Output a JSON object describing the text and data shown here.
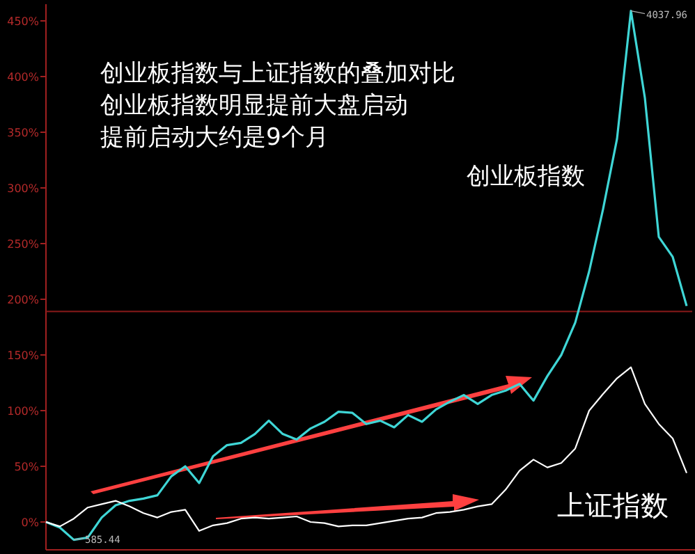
{
  "chart_data": {
    "type": "line",
    "categories": [
      null,
      null,
      null,
      null,
      null,
      null,
      null,
      null,
      null,
      null,
      null,
      null,
      null,
      null,
      null,
      null,
      null,
      null,
      null,
      null,
      null,
      null,
      null,
      null,
      null,
      null,
      null,
      null,
      null,
      null,
      null,
      null,
      null,
      null,
      null,
      null,
      null,
      null,
      null,
      null,
      null,
      null,
      null,
      null,
      null,
      null,
      null
    ],
    "series": [
      {
        "name": "创业板指数",
        "color": "#3fd6d6",
        "values": [
          0,
          -5,
          -16,
          -14,
          4,
          15,
          19,
          21,
          24,
          41,
          50,
          35,
          59,
          69,
          71,
          79,
          91,
          79,
          74,
          84,
          90,
          99,
          98,
          88,
          91,
          85,
          96,
          90,
          101,
          108,
          114,
          106,
          114,
          118,
          124,
          109,
          131,
          150,
          179,
          225,
          281,
          344,
          459,
          381,
          256,
          238,
          194
        ]
      },
      {
        "name": "上证指数",
        "color": "#ffffff",
        "values": [
          0,
          -4,
          3,
          13,
          16,
          19,
          14,
          8,
          4,
          9,
          11,
          -8,
          -3,
          -1,
          3,
          4,
          3,
          4,
          5,
          0,
          -1,
          -4,
          -3,
          -3,
          -1,
          1,
          3,
          4,
          8,
          9,
          11,
          14,
          16,
          29,
          46,
          56,
          49,
          53,
          66,
          100,
          115,
          129,
          139,
          106,
          88,
          75,
          44
        ]
      }
    ],
    "ylim": [
      -25,
      465
    ],
    "yticks": [
      {
        "value": 0,
        "label": "0%"
      },
      {
        "value": 50,
        "label": "50%"
      },
      {
        "value": 100,
        "label": "100%"
      },
      {
        "value": 150,
        "label": "150%"
      },
      {
        "value": 200,
        "label": "200%"
      },
      {
        "value": 250,
        "label": "250%"
      },
      {
        "value": 300,
        "label": "300%"
      },
      {
        "value": 350,
        "label": "350%"
      },
      {
        "value": 400,
        "label": "400%"
      },
      {
        "value": 450,
        "label": "450%"
      }
    ],
    "ref_lines": [
      {
        "axis": "y",
        "value": 189,
        "label": null,
        "color": "#8b1a1a"
      }
    ],
    "annotations": [
      "创业板指数与上证指数的叠加对比",
      "创业板指数明显提前大盘启动",
      "提前启动大约是9个月",
      "4037.96",
      "585.44"
    ]
  }
}
